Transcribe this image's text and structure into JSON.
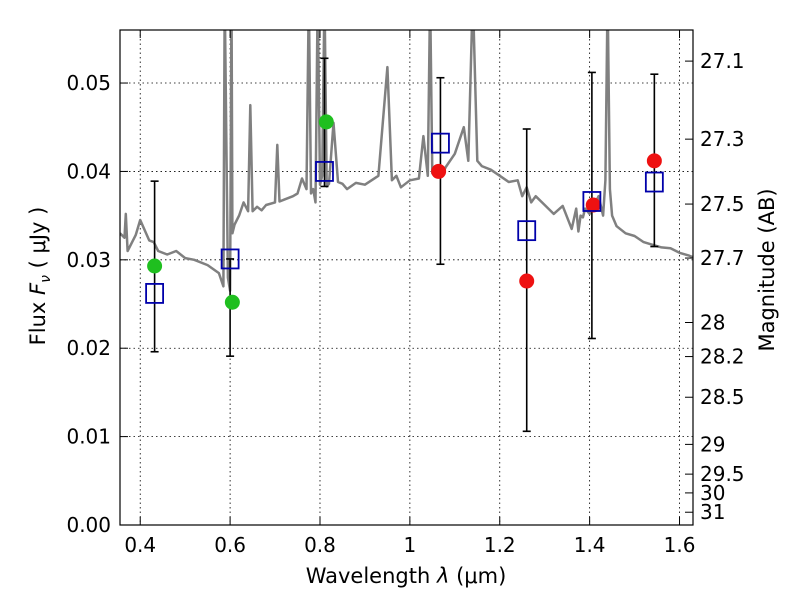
{
  "chart_data": {
    "type": "scatter",
    "xlabel_text": "Wavelength",
    "xlabel_symbol": "λ",
    "xlabel_unit": "(μm)",
    "ylabel_text": "Flux",
    "ylabel_symbol": "F",
    "ylabel_sub": "ν",
    "ylabel_unit": "( μJy )",
    "y2label": "Magnitude (AB)",
    "xlim": [
      0.355,
      1.63
    ],
    "ylim": [
      0.0,
      0.056
    ],
    "xticks": [
      0.4,
      0.6,
      0.8,
      1.0,
      1.2,
      1.4,
      1.6
    ],
    "xtick_labels": [
      "0.4",
      "0.6",
      "0.8",
      "1",
      "1.2",
      "1.4",
      "1.6"
    ],
    "yticks": [
      0.0,
      0.01,
      0.02,
      0.03,
      0.04,
      0.05
    ],
    "ytick_labels": [
      "0.00",
      "0.01",
      "0.02",
      "0.03",
      "0.04",
      "0.05"
    ],
    "y2ticks": [
      {
        "mag": 27.1,
        "label": "27.1"
      },
      {
        "mag": 27.3,
        "label": "27.3"
      },
      {
        "mag": 27.5,
        "label": "27.5"
      },
      {
        "mag": 27.7,
        "label": "27.7"
      },
      {
        "mag": 28.0,
        "label": "28"
      },
      {
        "mag": 28.2,
        "label": "28.2"
      },
      {
        "mag": 28.5,
        "label": "28.5"
      },
      {
        "mag": 29.0,
        "label": "29"
      },
      {
        "mag": 29.5,
        "label": "29.5"
      },
      {
        "mag": 30.0,
        "label": "30"
      },
      {
        "mag": 31.0,
        "label": "31"
      }
    ],
    "grid": true,
    "model_spectrum": {
      "name": "SED model",
      "color": "#808080",
      "x": [
        0.355,
        0.365,
        0.368,
        0.372,
        0.38,
        0.39,
        0.4,
        0.42,
        0.43,
        0.44,
        0.46,
        0.48,
        0.5,
        0.52,
        0.55,
        0.575,
        0.585,
        0.588,
        0.595,
        0.6,
        0.603,
        0.605,
        0.61,
        0.62,
        0.63,
        0.64,
        0.645,
        0.65,
        0.66,
        0.67,
        0.68,
        0.7,
        0.705,
        0.71,
        0.72,
        0.74,
        0.75,
        0.76,
        0.77,
        0.775,
        0.78,
        0.785,
        0.79,
        0.795,
        0.8,
        0.805,
        0.81,
        0.815,
        0.82,
        0.83,
        0.84,
        0.85,
        0.86,
        0.88,
        0.9,
        0.93,
        0.95,
        0.96,
        0.97,
        0.98,
        1.0,
        1.02,
        1.03,
        1.04,
        1.045,
        1.05,
        1.055,
        1.06,
        1.07,
        1.08,
        1.1,
        1.12,
        1.13,
        1.14,
        1.15,
        1.16,
        1.18,
        1.2,
        1.22,
        1.24,
        1.25,
        1.26,
        1.27,
        1.28,
        1.3,
        1.32,
        1.34,
        1.36,
        1.37,
        1.375,
        1.38,
        1.385,
        1.39,
        1.4,
        1.42,
        1.43,
        1.435,
        1.44,
        1.445,
        1.45,
        1.46,
        1.48,
        1.5,
        1.52,
        1.54,
        1.56,
        1.58,
        1.6,
        1.62,
        1.63
      ],
      "y": [
        0.033,
        0.0325,
        0.0352,
        0.031,
        0.0318,
        0.0328,
        0.0345,
        0.0322,
        0.032,
        0.031,
        0.0306,
        0.031,
        0.0302,
        0.03,
        0.0294,
        0.0285,
        0.027,
        0.06,
        0.028,
        0.0265,
        0.06,
        0.033,
        0.034,
        0.035,
        0.0365,
        0.0355,
        0.0475,
        0.0355,
        0.036,
        0.0356,
        0.0362,
        0.0365,
        0.043,
        0.0366,
        0.0368,
        0.0372,
        0.0375,
        0.0392,
        0.038,
        0.06,
        0.0375,
        0.038,
        0.0365,
        0.06,
        0.0385,
        0.0395,
        0.06,
        0.0383,
        0.0386,
        0.0455,
        0.0388,
        0.0386,
        0.038,
        0.0387,
        0.0385,
        0.0395,
        0.0518,
        0.039,
        0.0395,
        0.0382,
        0.039,
        0.0392,
        0.044,
        0.0395,
        0.06,
        0.0398,
        0.0395,
        0.04,
        0.0395,
        0.0405,
        0.042,
        0.045,
        0.0412,
        0.06,
        0.0412,
        0.0406,
        0.0402,
        0.0395,
        0.0388,
        0.039,
        0.0372,
        0.0382,
        0.0365,
        0.0372,
        0.0362,
        0.0352,
        0.0361,
        0.0335,
        0.0358,
        0.0332,
        0.035,
        0.0348,
        0.0358,
        0.0352,
        0.0372,
        0.035,
        0.039,
        0.06,
        0.038,
        0.035,
        0.0338,
        0.033,
        0.0327,
        0.032,
        0.0317,
        0.0314,
        0.0313,
        0.0308,
        0.0305,
        0.0303
      ]
    },
    "observed_green": {
      "name": "Observed (green)",
      "color": "#1fbf1f",
      "points": [
        {
          "x": 0.432,
          "y": 0.0293
        },
        {
          "x": 0.605,
          "y": 0.0252
        },
        {
          "x": 0.814,
          "y": 0.0456
        }
      ]
    },
    "observed_red": {
      "name": "Observed (red)",
      "color": "#ee1111",
      "points": [
        {
          "x": 1.064,
          "y": 0.04
        },
        {
          "x": 1.26,
          "y": 0.0276
        },
        {
          "x": 1.408,
          "y": 0.0362
        },
        {
          "x": 1.544,
          "y": 0.0412
        }
      ]
    },
    "model_photometry": {
      "name": "Model photometry",
      "color": "#0000aa",
      "points": [
        {
          "x": 0.432,
          "y": 0.0262,
          "ylo": 0.0196,
          "yhi": 0.0389
        },
        {
          "x": 0.6,
          "y": 0.0301,
          "ylo": 0.0191,
          "yhi": 0.0301
        },
        {
          "x": 0.81,
          "y": 0.04,
          "ylo": 0.0383,
          "yhi": 0.0528
        },
        {
          "x": 1.068,
          "y": 0.0432,
          "ylo": 0.0295,
          "yhi": 0.0506
        },
        {
          "x": 1.26,
          "y": 0.0333,
          "ylo": 0.0106,
          "yhi": 0.0448
        },
        {
          "x": 1.405,
          "y": 0.0366,
          "ylo": 0.0211,
          "yhi": 0.0512
        },
        {
          "x": 1.544,
          "y": 0.0388,
          "ylo": 0.0315,
          "yhi": 0.051
        }
      ]
    }
  }
}
